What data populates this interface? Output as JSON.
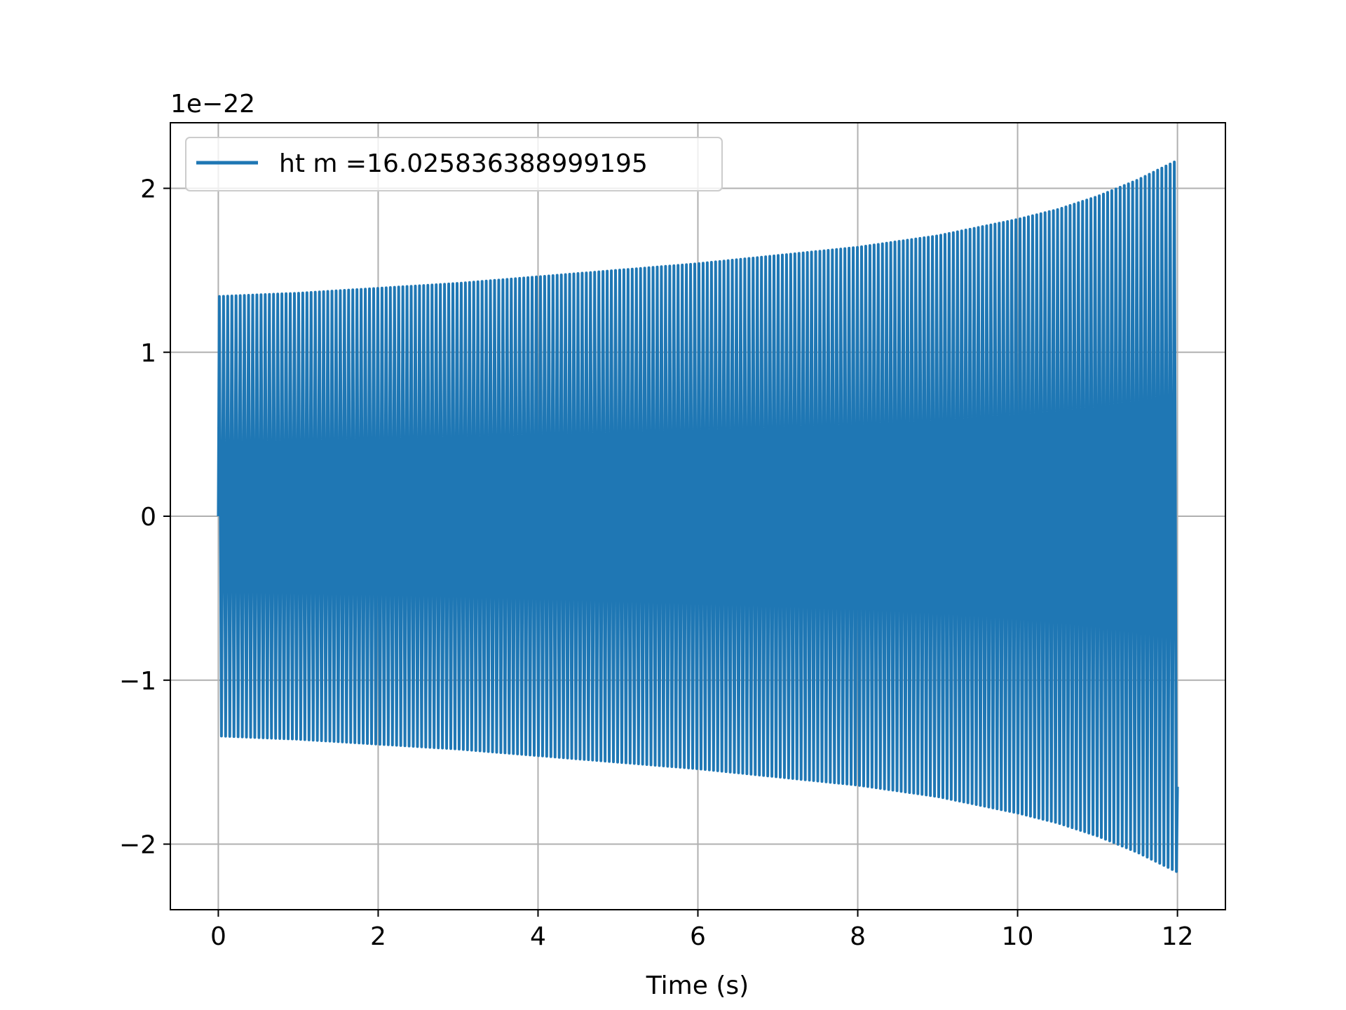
{
  "chart_data": {
    "type": "line",
    "title": "",
    "xlabel": "Time (s)",
    "ylabel": "",
    "offset_text": "1e−22",
    "xlim": [
      -0.6,
      12.6
    ],
    "ylim": [
      -2.4,
      2.4
    ],
    "x_ticks": [
      0,
      2,
      4,
      6,
      8,
      10,
      12
    ],
    "x_tick_labels": [
      "0",
      "2",
      "4",
      "6",
      "8",
      "10",
      "12"
    ],
    "y_ticks": [
      -2,
      -1,
      0,
      1,
      2
    ],
    "y_tick_labels": [
      "−2",
      "−1",
      "0",
      "1",
      "2"
    ],
    "grid": true,
    "legend_position": "top-left",
    "series": [
      {
        "name": "ht m =16.025836388999195",
        "color": "#1f77b4",
        "scale": 1e-22,
        "t_start": 0,
        "t_end": 12,
        "cycles": 230,
        "envelope_t": [
          0,
          1,
          2,
          3,
          4,
          5,
          6,
          7,
          8,
          9,
          10,
          10.5,
          11,
          11.5,
          12
        ],
        "envelope_amp": [
          1.34,
          1.36,
          1.39,
          1.42,
          1.46,
          1.5,
          1.54,
          1.59,
          1.64,
          1.71,
          1.81,
          1.87,
          1.95,
          2.05,
          2.17
        ]
      }
    ]
  }
}
